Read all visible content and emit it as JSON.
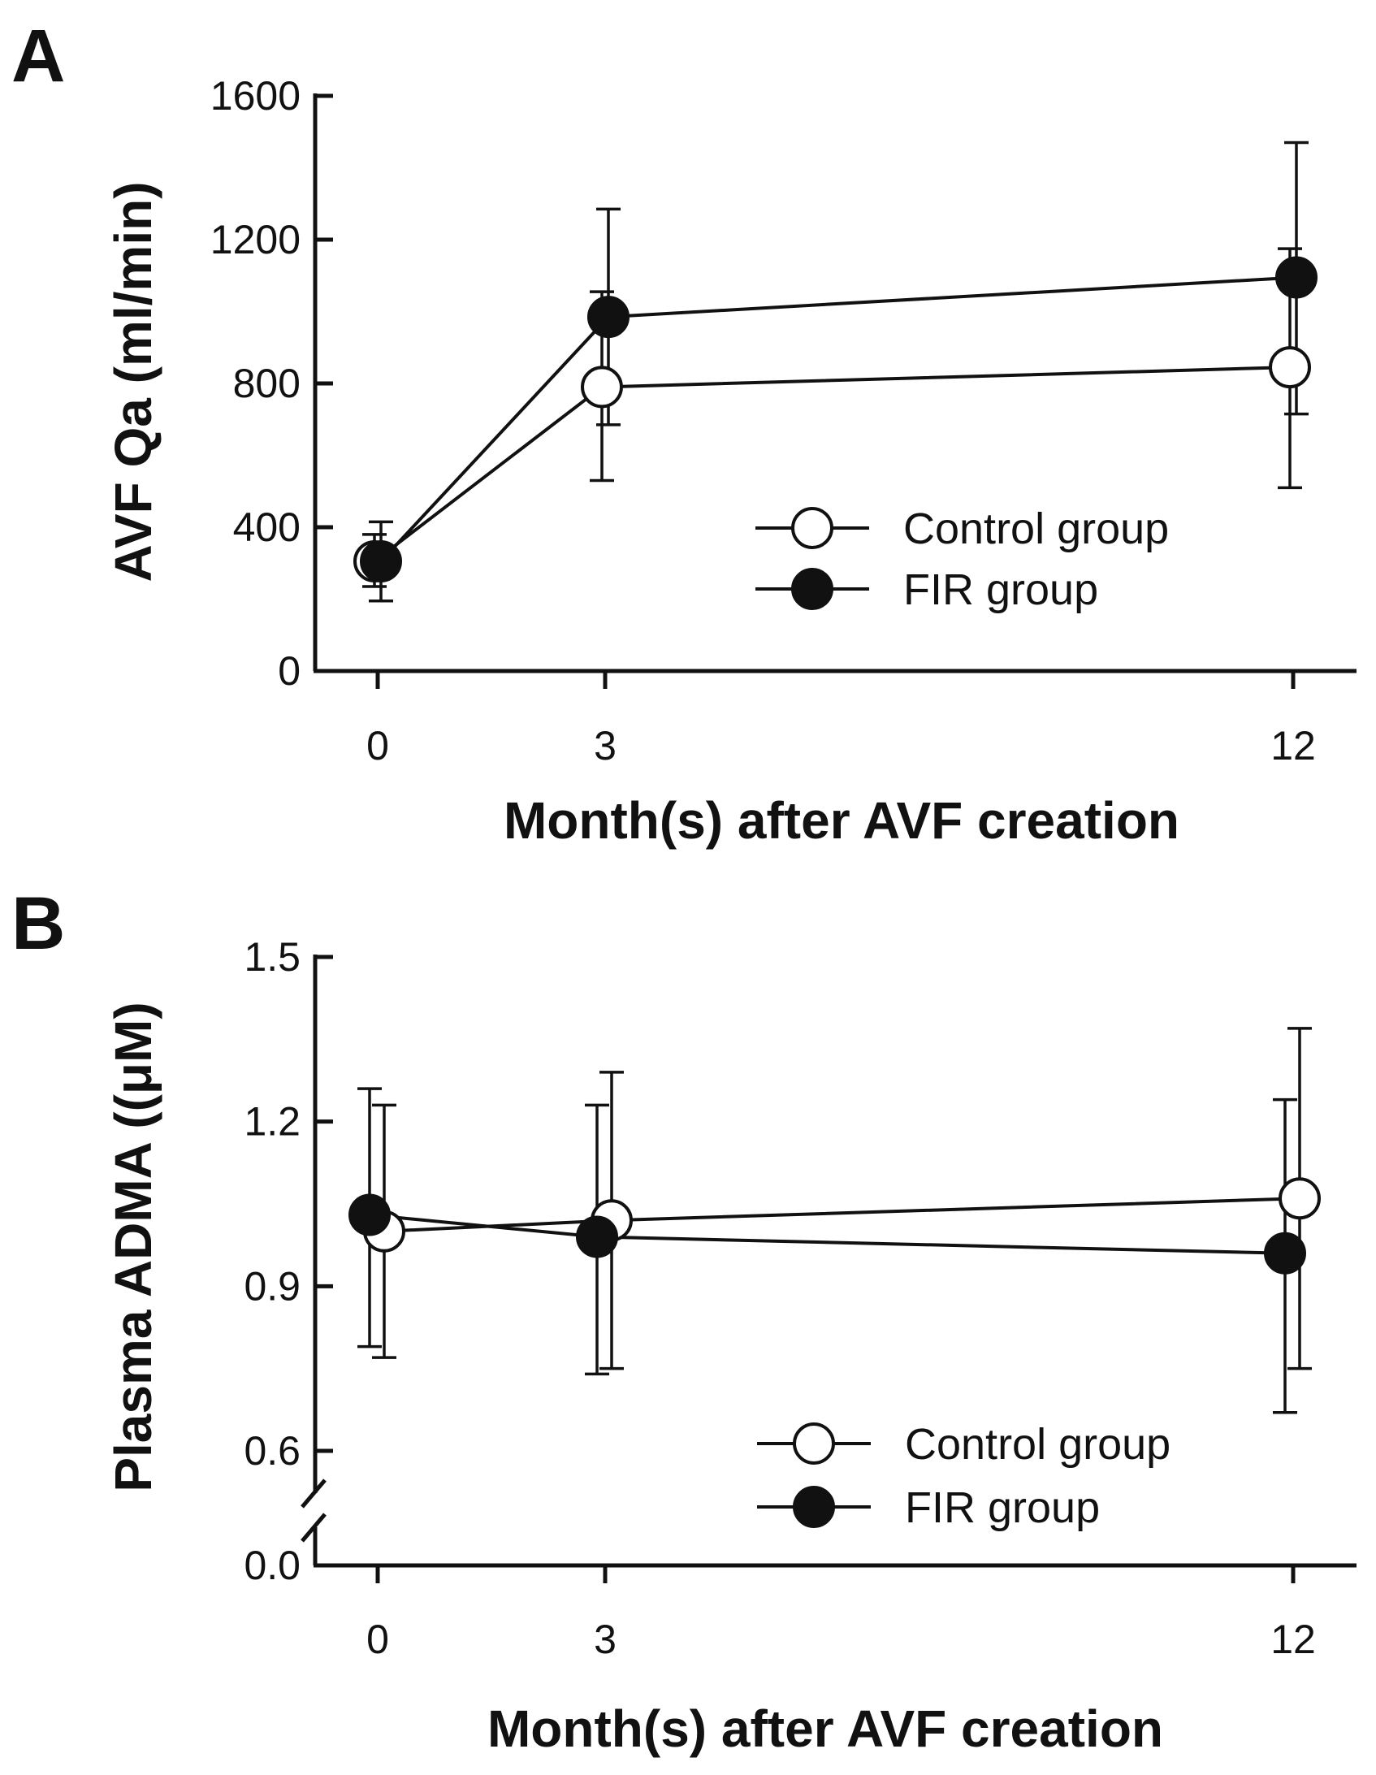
{
  "chart_data": [
    {
      "type": "line",
      "panel": "A",
      "xlabel": "Month(s) after AVF creation",
      "ylabel": "AVF Qa (ml/min)",
      "categories": [
        "0",
        "3",
        "12"
      ],
      "ylim": [
        0,
        1600
      ],
      "yticks": [
        "0",
        "400",
        "800",
        "1200",
        "1600"
      ],
      "y_break": false,
      "series": [
        {
          "name": "Control group",
          "marker": "open-circle",
          "values": [
            305,
            790,
            845
          ],
          "err_upper": [
            380,
            1055,
            1175
          ],
          "err_lower": [
            235,
            530,
            510
          ]
        },
        {
          "name": "FIR group",
          "marker": "filled-circle",
          "values": [
            305,
            985,
            1095
          ],
          "err_upper": [
            415,
            1285,
            1470
          ],
          "err_lower": [
            195,
            685,
            715
          ]
        }
      ]
    },
    {
      "type": "line",
      "panel": "B",
      "xlabel": "Month(s) after AVF creation",
      "ylabel": "Plasma ADMA ((μM)",
      "categories": [
        "0",
        "3",
        "12"
      ],
      "ylim": [
        0,
        1.5
      ],
      "yticks": [
        "0.0",
        "0.6",
        "0.9",
        "1.2",
        "1.5"
      ],
      "y_break": true,
      "series": [
        {
          "name": "Control group",
          "marker": "open-circle",
          "values": [
            1.0,
            1.02,
            1.06
          ],
          "err_upper": [
            1.23,
            1.29,
            1.37
          ],
          "err_lower": [
            0.77,
            0.75,
            0.75
          ]
        },
        {
          "name": "FIR group",
          "marker": "filled-circle",
          "values": [
            1.03,
            0.99,
            0.96
          ],
          "err_upper": [
            1.26,
            1.23,
            1.24
          ],
          "err_lower": [
            0.79,
            0.74,
            0.67
          ]
        }
      ]
    }
  ]
}
